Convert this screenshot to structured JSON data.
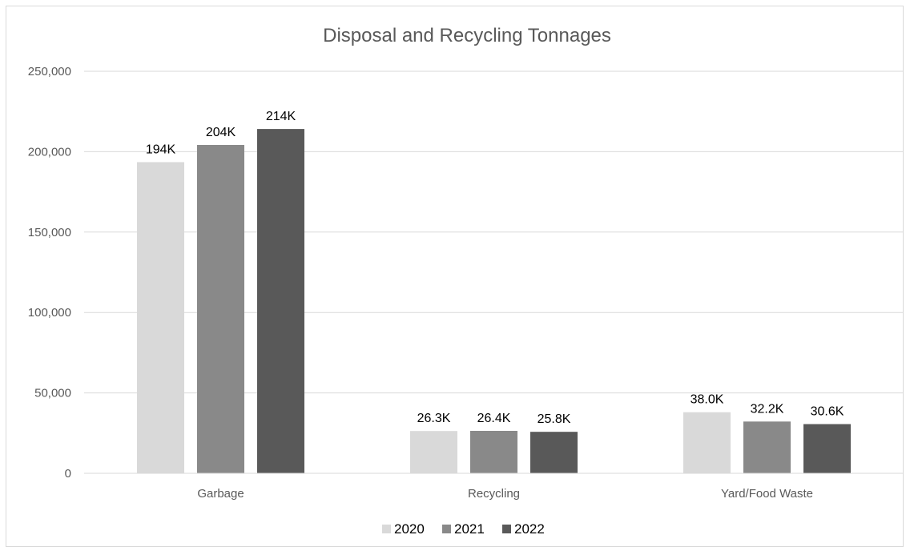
{
  "chart_data": {
    "type": "bar",
    "title": "Disposal and Recycling Tonnages",
    "xlabel": "",
    "ylabel": "",
    "categories": [
      "Garbage",
      "Recycling",
      "Yard/Food Waste"
    ],
    "ylim": [
      0,
      250000
    ],
    "yticks": [
      0,
      50000,
      100000,
      150000,
      200000,
      250000
    ],
    "ytick_labels": [
      "0",
      "50,000",
      "100,000",
      "150,000",
      "200,000",
      "250,000"
    ],
    "grid": true,
    "legend_position": "bottom",
    "series": [
      {
        "name": "2020",
        "color": "#d9d9d9",
        "values": [
          193500,
          26300,
          38000
        ],
        "labels": [
          "194K",
          "26.3K",
          "38.0K"
        ]
      },
      {
        "name": "2021",
        "color": "#898989",
        "values": [
          204200,
          26400,
          32200
        ],
        "labels": [
          "204K",
          "26.4K",
          "32.2K"
        ]
      },
      {
        "name": "2022",
        "color": "#595959",
        "values": [
          214100,
          25800,
          30600
        ],
        "labels": [
          "214K",
          "25.8K",
          "30.6K"
        ]
      }
    ]
  }
}
